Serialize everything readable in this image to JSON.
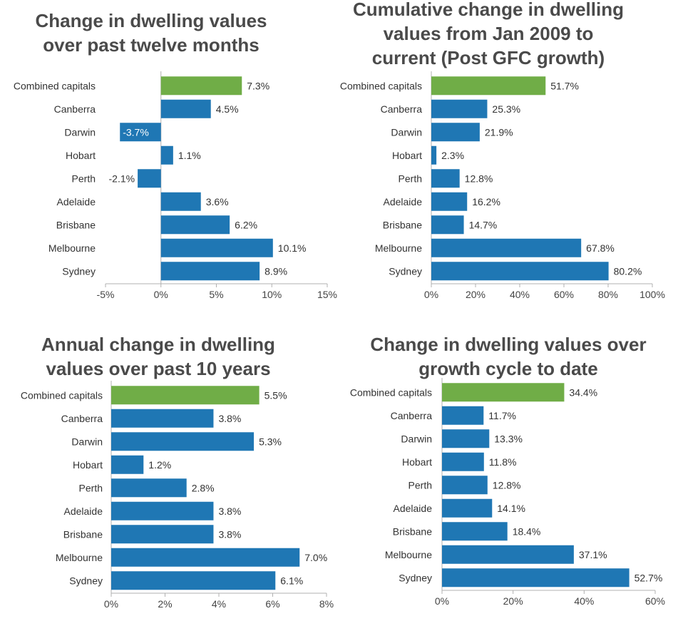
{
  "colors": {
    "highlight": "#70ad47",
    "bar": "#1f77b4",
    "axis": "#b0b0b0",
    "neg_label": "#ffffff"
  },
  "chart_data": [
    {
      "type": "bar",
      "orientation": "horizontal",
      "title": "Change in dwelling values over past twelve months",
      "title_lines": [
        "Change in dwelling values",
        "over past twelve months"
      ],
      "categories": [
        "Combined capitals",
        "Canberra",
        "Darwin",
        "Hobart",
        "Perth",
        "Adelaide",
        "Brisbane",
        "Melbourne",
        "Sydney"
      ],
      "values": [
        7.3,
        4.5,
        -3.7,
        1.1,
        -2.1,
        3.6,
        6.2,
        10.1,
        8.9
      ],
      "labels": [
        "7.3%",
        "4.5%",
        "-3.7%",
        "1.1%",
        "-2.1%",
        "3.6%",
        "6.2%",
        "10.1%",
        "8.9%"
      ],
      "xlim": [
        -5,
        15
      ],
      "ticks": [
        -5,
        0,
        5,
        10,
        15
      ],
      "tick_labels": [
        "-5%",
        "0%",
        "5%",
        "10%",
        "15%"
      ],
      "highlight_index": 0
    },
    {
      "type": "bar",
      "orientation": "horizontal",
      "title": "Cumulative change in dwelling values from Jan 2009 to current (Post GFC growth)",
      "title_lines": [
        "Cumulative change in dwelling",
        "values from Jan 2009 to",
        "current (Post GFC growth)"
      ],
      "categories": [
        "Combined capitals",
        "Canberra",
        "Darwin",
        "Hobart",
        "Perth",
        "Adelaide",
        "Brisbane",
        "Melbourne",
        "Sydney"
      ],
      "values": [
        51.7,
        25.3,
        21.9,
        2.3,
        12.8,
        16.2,
        14.7,
        67.8,
        80.2
      ],
      "labels": [
        "51.7%",
        "25.3%",
        "21.9%",
        "2.3%",
        "12.8%",
        "16.2%",
        "14.7%",
        "67.8%",
        "80.2%"
      ],
      "xlim": [
        0,
        100
      ],
      "ticks": [
        0,
        20,
        40,
        60,
        80,
        100
      ],
      "tick_labels": [
        "0%",
        "20%",
        "40%",
        "60%",
        "80%",
        "100%"
      ],
      "highlight_index": 0
    },
    {
      "type": "bar",
      "orientation": "horizontal",
      "title": "Annual change in dwelling values over past 10 years",
      "title_lines": [
        "Annual change in dwelling",
        "values over past 10 years"
      ],
      "categories": [
        "Combined capitals",
        "Canberra",
        "Darwin",
        "Hobart",
        "Perth",
        "Adelaide",
        "Brisbane",
        "Melbourne",
        "Sydney"
      ],
      "values": [
        5.5,
        3.8,
        5.3,
        1.2,
        2.8,
        3.8,
        3.8,
        7.0,
        6.1
      ],
      "labels": [
        "5.5%",
        "3.8%",
        "5.3%",
        "1.2%",
        "2.8%",
        "3.8%",
        "3.8%",
        "7.0%",
        "6.1%"
      ],
      "xlim": [
        0,
        8
      ],
      "ticks": [
        0,
        2,
        4,
        6,
        8
      ],
      "tick_labels": [
        "0%",
        "2%",
        "4%",
        "6%",
        "8%"
      ],
      "highlight_index": 0
    },
    {
      "type": "bar",
      "orientation": "horizontal",
      "title": "Change in dwelling values over growth cycle to date",
      "title_lines": [
        "Change in dwelling values over",
        "growth cycle to date"
      ],
      "categories": [
        "Combined capitals",
        "Canberra",
        "Darwin",
        "Hobart",
        "Perth",
        "Adelaide",
        "Brisbane",
        "Melbourne",
        "Sydney"
      ],
      "values": [
        34.4,
        11.7,
        13.3,
        11.8,
        12.8,
        14.1,
        18.4,
        37.1,
        52.7
      ],
      "labels": [
        "34.4%",
        "11.7%",
        "13.3%",
        "11.8%",
        "12.8%",
        "14.1%",
        "18.4%",
        "37.1%",
        "52.7%"
      ],
      "xlim": [
        0,
        60
      ],
      "ticks": [
        0,
        20,
        40,
        60
      ],
      "tick_labels": [
        "0%",
        "20%",
        "40%",
        "60%"
      ],
      "highlight_index": 0
    }
  ]
}
